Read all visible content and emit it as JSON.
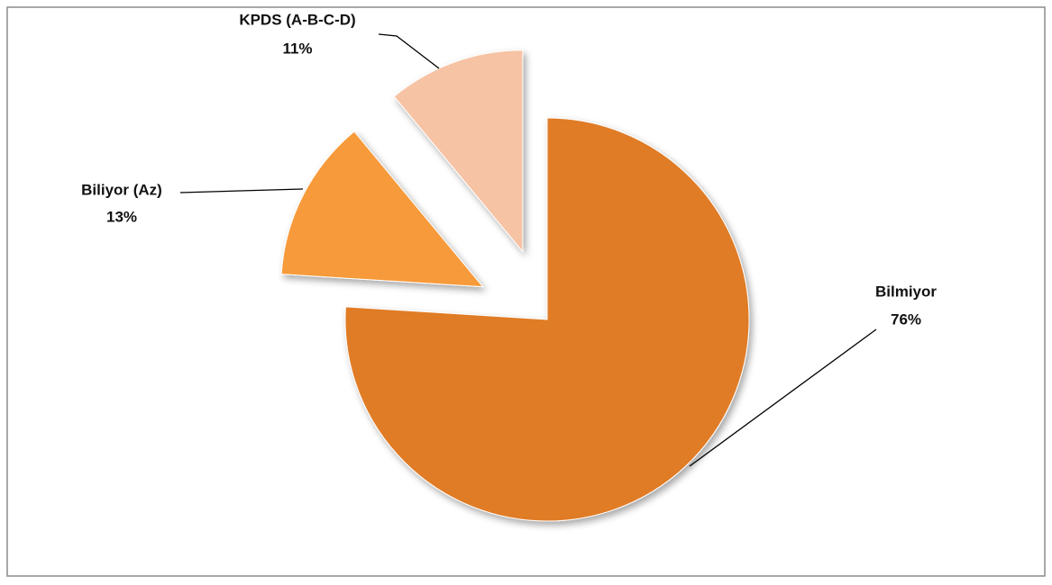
{
  "chart_data": {
    "type": "pie",
    "categories": [
      "Bilmiyor",
      "Biliyor (Az)",
      "KPDS (A-B-C-D)"
    ],
    "values": [
      76,
      13,
      11
    ],
    "value_labels": [
      "76%",
      "13%",
      "11%"
    ],
    "colors": [
      "#e07c28",
      "#f79a3a",
      "#f6c3a4"
    ]
  }
}
